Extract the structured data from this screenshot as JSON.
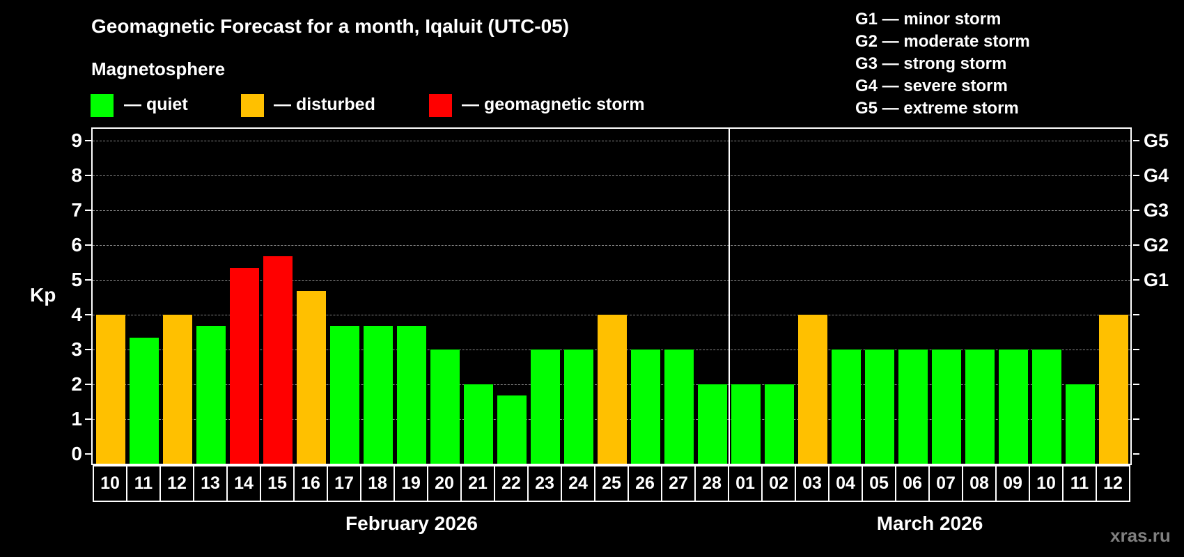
{
  "header": {
    "title": "Geomagnetic Forecast for a month, Iqaluit (UTC-05)",
    "subtitle": "Magnetosphere"
  },
  "legend": [
    {
      "label": "— quiet",
      "color": "#00ff00"
    },
    {
      "label": "— disturbed",
      "color": "#ffc000"
    },
    {
      "label": "— geomagnetic storm",
      "color": "#ff0000"
    }
  ],
  "g_scale": [
    "G1 — minor storm",
    "G2 — moderate storm",
    "G3 — strong storm",
    "G4 — severe storm",
    "G5 — extreme storm"
  ],
  "axis": {
    "ylabel": "Kp",
    "yticks": [
      "0",
      "1",
      "2",
      "3",
      "4",
      "5",
      "6",
      "7",
      "8",
      "9"
    ],
    "right_labels": {
      "5": "G1",
      "6": "G2",
      "7": "G3",
      "8": "G4",
      "9": "G5"
    }
  },
  "months": {
    "feb": "February 2026",
    "mar": "March 2026"
  },
  "watermark": "xras.ru",
  "colors": {
    "quiet": "#00ff00",
    "disturbed": "#ffc000",
    "storm": "#ff0000",
    "grid": "#8a8a8a",
    "background": "#000000"
  },
  "chart_data": {
    "type": "bar",
    "title": "Geomagnetic Forecast for a month, Iqaluit (UTC-05)",
    "xlabel": "",
    "ylabel": "Kp",
    "ylim": [
      0,
      9
    ],
    "grid": true,
    "categories": [
      "10",
      "11",
      "12",
      "13",
      "14",
      "15",
      "16",
      "17",
      "18",
      "19",
      "20",
      "21",
      "22",
      "23",
      "24",
      "25",
      "26",
      "27",
      "28",
      "01",
      "02",
      "03",
      "04",
      "05",
      "06",
      "07",
      "08",
      "09",
      "10",
      "11",
      "12"
    ],
    "month_groups": [
      {
        "label": "February 2026",
        "start": 0,
        "count": 19
      },
      {
        "label": "March 2026",
        "start": 19,
        "count": 12
      }
    ],
    "values": [
      4.0,
      3.33,
      4.0,
      3.67,
      5.33,
      5.67,
      4.67,
      3.67,
      3.67,
      3.67,
      3.0,
      2.0,
      1.67,
      3.0,
      3.0,
      4.0,
      3.0,
      3.0,
      2.0,
      2.0,
      2.0,
      4.0,
      3.0,
      3.0,
      3.0,
      3.0,
      3.0,
      3.0,
      3.0,
      2.0,
      4.0
    ],
    "status": [
      "disturbed",
      "quiet",
      "disturbed",
      "quiet",
      "storm",
      "storm",
      "disturbed",
      "quiet",
      "quiet",
      "quiet",
      "quiet",
      "quiet",
      "quiet",
      "quiet",
      "quiet",
      "disturbed",
      "quiet",
      "quiet",
      "quiet",
      "quiet",
      "quiet",
      "disturbed",
      "quiet",
      "quiet",
      "quiet",
      "quiet",
      "quiet",
      "quiet",
      "quiet",
      "quiet",
      "disturbed"
    ],
    "legend": [
      "quiet",
      "disturbed",
      "geomagnetic storm"
    ],
    "right_axis": {
      "5": "G1",
      "6": "G2",
      "7": "G3",
      "8": "G4",
      "9": "G5"
    }
  }
}
